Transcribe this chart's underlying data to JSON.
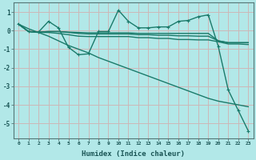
{
  "xlabel": "Humidex (Indice chaleur)",
  "background_color": "#b2e8e8",
  "grid_color": "#ccb8b8",
  "line_color": "#1a7a6a",
  "xlim": [
    -0.5,
    23.5
  ],
  "ylim": [
    -5.8,
    1.5
  ],
  "yticks": [
    1,
    0,
    -1,
    -2,
    -3,
    -4,
    -5
  ],
  "xticks": [
    0,
    1,
    2,
    3,
    4,
    5,
    6,
    7,
    8,
    9,
    10,
    11,
    12,
    13,
    14,
    15,
    16,
    17,
    18,
    19,
    20,
    21,
    22,
    23
  ],
  "series_main": [
    0.35,
    -0.05,
    -0.08,
    0.5,
    0.15,
    -0.9,
    -1.3,
    -1.25,
    -0.05,
    -0.05,
    1.1,
    0.5,
    0.15,
    0.15,
    0.2,
    0.2,
    0.5,
    0.55,
    0.75,
    0.85,
    -0.85,
    -3.2,
    -4.3,
    -5.4
  ],
  "series_diag": [
    0.35,
    0.1,
    -0.1,
    -0.3,
    -0.55,
    -0.8,
    -1.0,
    -1.2,
    -1.45,
    -1.65,
    -1.85,
    -2.05,
    -2.25,
    -2.45,
    -2.65,
    -2.85,
    -3.05,
    -3.25,
    -3.45,
    -3.65,
    -3.8,
    -3.9,
    -4.0,
    -4.1
  ],
  "series_flat1": [
    0.35,
    -0.05,
    -0.08,
    -0.05,
    -0.05,
    -0.08,
    -0.1,
    -0.12,
    -0.12,
    -0.12,
    -0.12,
    -0.12,
    -0.15,
    -0.15,
    -0.15,
    -0.15,
    -0.15,
    -0.15,
    -0.15,
    -0.15,
    -0.55,
    -0.65,
    -0.65,
    -0.65
  ],
  "series_flat2": [
    0.35,
    -0.05,
    -0.08,
    -0.05,
    -0.05,
    -0.1,
    -0.15,
    -0.18,
    -0.18,
    -0.18,
    -0.18,
    -0.18,
    -0.22,
    -0.22,
    -0.25,
    -0.25,
    -0.28,
    -0.28,
    -0.3,
    -0.3,
    -0.55,
    -0.65,
    -0.65,
    -0.65
  ],
  "series_flat3": [
    0.35,
    -0.05,
    -0.1,
    -0.1,
    -0.15,
    -0.22,
    -0.3,
    -0.32,
    -0.32,
    -0.32,
    -0.32,
    -0.32,
    -0.38,
    -0.38,
    -0.42,
    -0.42,
    -0.48,
    -0.48,
    -0.5,
    -0.5,
    -0.6,
    -0.72,
    -0.72,
    -0.75
  ]
}
